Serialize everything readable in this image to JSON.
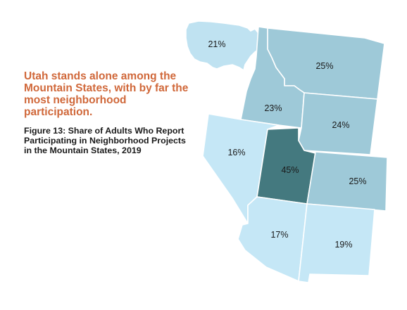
{
  "headline": "Utah stands alone among the Mountain States, with by far the most neighborhood participation.",
  "figure_title": "Figure 13: Share of Adults Who Report Participating in Neighborhood Projects in the Mountain States, 2019",
  "colors": {
    "headline": "#d0683a",
    "low": "#c5e7f6",
    "mid": "#9ec9d8",
    "high": "#44797f",
    "us": "#bfe2f1"
  },
  "states": {
    "us": {
      "label": "21%",
      "value": 21
    },
    "montana": {
      "label": "25%",
      "value": 25
    },
    "idaho": {
      "label": "23%",
      "value": 23
    },
    "wyoming": {
      "label": "24%",
      "value": 24
    },
    "nevada": {
      "label": "16%",
      "value": 16
    },
    "utah": {
      "label": "45%",
      "value": 45
    },
    "colorado": {
      "label": "25%",
      "value": 25
    },
    "arizona": {
      "label": "17%",
      "value": 17
    },
    "new_mexico": {
      "label": "19%",
      "value": 19
    }
  }
}
